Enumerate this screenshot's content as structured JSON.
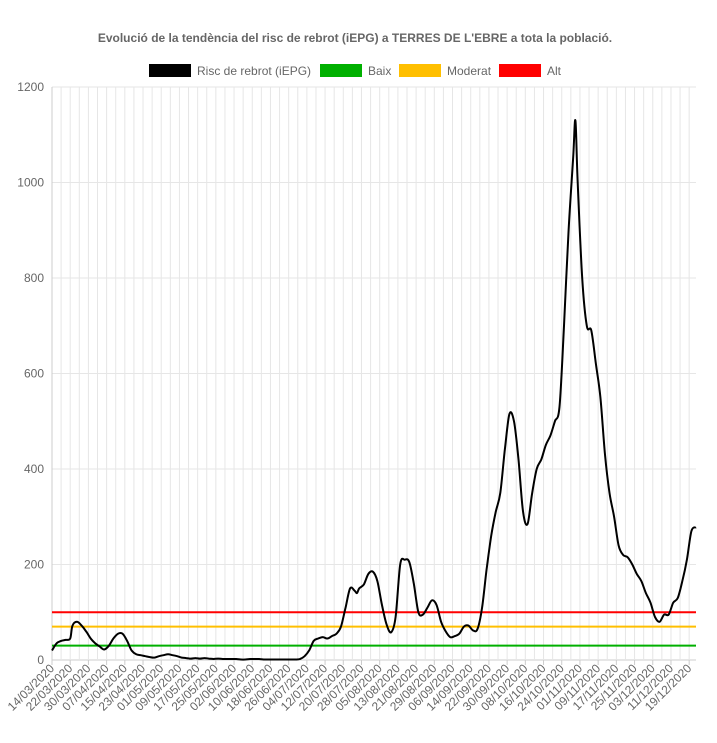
{
  "chart_data": {
    "type": "line",
    "title": "Evolució de la tendència del risc de rebrot (iEPG) a TERRES DE L'EBRE a tota la població.",
    "xlabel": "",
    "ylabel": "",
    "ylim": [
      0,
      1200
    ],
    "yticks": [
      0,
      200,
      400,
      600,
      800,
      1000,
      1200
    ],
    "grid": true,
    "legend_position": "top",
    "x_tick_labels": [
      "14/03/2020",
      "22/03/2020",
      "30/03/2020",
      "07/04/2020",
      "15/04/2020",
      "23/04/2020",
      "01/05/2020",
      "09/05/2020",
      "17/05/2020",
      "25/05/2020",
      "02/06/2020",
      "10/06/2020",
      "18/06/2020",
      "26/06/2020",
      "04/07/2020",
      "12/07/2020",
      "20/07/2020",
      "28/07/2020",
      "05/08/2020",
      "13/08/2020",
      "21/08/2020",
      "29/08/2020",
      "06/09/2020",
      "14/09/2020",
      "22/09/2020",
      "30/09/2020",
      "08/10/2020",
      "16/10/2020",
      "24/10/2020",
      "01/11/2020",
      "09/11/2020",
      "17/11/2020",
      "25/11/2020",
      "03/12/2020",
      "11/12/2020",
      "19/12/2020"
    ],
    "series": [
      {
        "name": "Risc de rebrot (iEPG)",
        "color": "#000000",
        "points": [
          [
            "14/03/2020",
            20
          ],
          [
            "16/03/2020",
            35
          ],
          [
            "18/03/2020",
            40
          ],
          [
            "20/03/2020",
            42
          ],
          [
            "22/03/2020",
            45
          ],
          [
            "23/03/2020",
            72
          ],
          [
            "25/03/2020",
            80
          ],
          [
            "27/03/2020",
            72
          ],
          [
            "29/03/2020",
            60
          ],
          [
            "31/03/2020",
            45
          ],
          [
            "02/04/2020",
            35
          ],
          [
            "04/04/2020",
            28
          ],
          [
            "06/04/2020",
            22
          ],
          [
            "08/04/2020",
            30
          ],
          [
            "10/04/2020",
            45
          ],
          [
            "12/04/2020",
            55
          ],
          [
            "14/04/2020",
            55
          ],
          [
            "16/04/2020",
            40
          ],
          [
            "18/04/2020",
            20
          ],
          [
            "20/04/2020",
            12
          ],
          [
            "22/04/2020",
            10
          ],
          [
            "24/04/2020",
            8
          ],
          [
            "26/04/2020",
            6
          ],
          [
            "28/04/2020",
            5
          ],
          [
            "30/04/2020",
            8
          ],
          [
            "02/05/2020",
            10
          ],
          [
            "04/05/2020",
            12
          ],
          [
            "06/05/2020",
            10
          ],
          [
            "08/05/2020",
            8
          ],
          [
            "10/05/2020",
            5
          ],
          [
            "12/05/2020",
            4
          ],
          [
            "14/05/2020",
            3
          ],
          [
            "16/05/2020",
            4
          ],
          [
            "18/05/2020",
            3
          ],
          [
            "20/05/2020",
            4
          ],
          [
            "22/05/2020",
            3
          ],
          [
            "24/05/2020",
            2
          ],
          [
            "26/05/2020",
            3
          ],
          [
            "28/05/2020",
            2
          ],
          [
            "30/05/2020",
            2
          ],
          [
            "01/06/2020",
            2
          ],
          [
            "03/06/2020",
            2
          ],
          [
            "05/06/2020",
            1
          ],
          [
            "07/06/2020",
            1
          ],
          [
            "09/06/2020",
            2
          ],
          [
            "11/06/2020",
            2
          ],
          [
            "13/06/2020",
            2
          ],
          [
            "15/06/2020",
            1
          ],
          [
            "17/06/2020",
            1
          ],
          [
            "19/06/2020",
            1
          ],
          [
            "21/06/2020",
            1
          ],
          [
            "23/06/2020",
            1
          ],
          [
            "25/06/2020",
            1
          ],
          [
            "27/06/2020",
            1
          ],
          [
            "29/06/2020",
            1
          ],
          [
            "01/07/2020",
            2
          ],
          [
            "03/07/2020",
            8
          ],
          [
            "05/07/2020",
            20
          ],
          [
            "07/07/2020",
            40
          ],
          [
            "09/07/2020",
            45
          ],
          [
            "11/07/2020",
            48
          ],
          [
            "13/07/2020",
            45
          ],
          [
            "15/07/2020",
            50
          ],
          [
            "17/07/2020",
            55
          ],
          [
            "19/07/2020",
            70
          ],
          [
            "21/07/2020",
            110
          ],
          [
            "23/07/2020",
            150
          ],
          [
            "25/07/2020",
            145
          ],
          [
            "26/07/2020",
            140
          ],
          [
            "27/07/2020",
            150
          ],
          [
            "29/07/2020",
            158
          ],
          [
            "31/07/2020",
            180
          ],
          [
            "02/08/2020",
            185
          ],
          [
            "04/08/2020",
            165
          ],
          [
            "06/08/2020",
            115
          ],
          [
            "08/08/2020",
            75
          ],
          [
            "10/08/2020",
            58
          ],
          [
            "12/08/2020",
            90
          ],
          [
            "14/08/2020",
            200
          ],
          [
            "16/08/2020",
            210
          ],
          [
            "18/08/2020",
            205
          ],
          [
            "20/08/2020",
            160
          ],
          [
            "22/08/2020",
            100
          ],
          [
            "24/08/2020",
            95
          ],
          [
            "26/08/2020",
            110
          ],
          [
            "28/08/2020",
            125
          ],
          [
            "30/08/2020",
            115
          ],
          [
            "01/09/2020",
            80
          ],
          [
            "03/09/2020",
            60
          ],
          [
            "05/09/2020",
            48
          ],
          [
            "07/09/2020",
            50
          ],
          [
            "09/09/2020",
            55
          ],
          [
            "11/09/2020",
            70
          ],
          [
            "13/09/2020",
            72
          ],
          [
            "15/09/2020",
            62
          ],
          [
            "17/09/2020",
            65
          ],
          [
            "19/09/2020",
            110
          ],
          [
            "21/09/2020",
            190
          ],
          [
            "23/09/2020",
            260
          ],
          [
            "25/09/2020",
            310
          ],
          [
            "27/09/2020",
            350
          ],
          [
            "29/09/2020",
            440
          ],
          [
            "01/10/2020",
            515
          ],
          [
            "03/10/2020",
            500
          ],
          [
            "05/10/2020",
            420
          ],
          [
            "07/10/2020",
            310
          ],
          [
            "09/10/2020",
            285
          ],
          [
            "11/10/2020",
            350
          ],
          [
            "13/10/2020",
            400
          ],
          [
            "15/10/2020",
            420
          ],
          [
            "17/10/2020",
            450
          ],
          [
            "19/10/2020",
            470
          ],
          [
            "21/10/2020",
            500
          ],
          [
            "23/10/2020",
            530
          ],
          [
            "25/10/2020",
            700
          ],
          [
            "27/10/2020",
            900
          ],
          [
            "29/10/2020",
            1050
          ],
          [
            "30/10/2020",
            1130
          ],
          [
            "31/10/2020",
            1000
          ],
          [
            "02/11/2020",
            800
          ],
          [
            "04/11/2020",
            700
          ],
          [
            "06/11/2020",
            690
          ],
          [
            "08/11/2020",
            620
          ],
          [
            "10/11/2020",
            550
          ],
          [
            "12/11/2020",
            430
          ],
          [
            "14/11/2020",
            350
          ],
          [
            "16/11/2020",
            300
          ],
          [
            "18/11/2020",
            240
          ],
          [
            "20/11/2020",
            220
          ],
          [
            "22/11/2020",
            215
          ],
          [
            "24/11/2020",
            200
          ],
          [
            "26/11/2020",
            180
          ],
          [
            "28/11/2020",
            165
          ],
          [
            "30/11/2020",
            140
          ],
          [
            "02/12/2020",
            120
          ],
          [
            "04/12/2020",
            90
          ],
          [
            "06/12/2020",
            80
          ],
          [
            "08/12/2020",
            95
          ],
          [
            "10/12/2020",
            95
          ],
          [
            "12/12/2020",
            120
          ],
          [
            "14/12/2020",
            130
          ],
          [
            "16/12/2020",
            165
          ],
          [
            "18/12/2020",
            210
          ],
          [
            "20/12/2020",
            270
          ],
          [
            "22/12/2020",
            278
          ]
        ]
      },
      {
        "name": "Baix",
        "color": "#00b000",
        "constant": 30,
        "from": "14/03/2020",
        "to": "22/12/2020"
      },
      {
        "name": "Moderat",
        "color": "#ffbf00",
        "constant": 70,
        "from": "14/03/2020",
        "to": "22/12/2020"
      },
      {
        "name": "Alt",
        "color": "#ff0000",
        "constant": 100,
        "from": "14/03/2020",
        "to": "22/12/2020"
      }
    ]
  }
}
